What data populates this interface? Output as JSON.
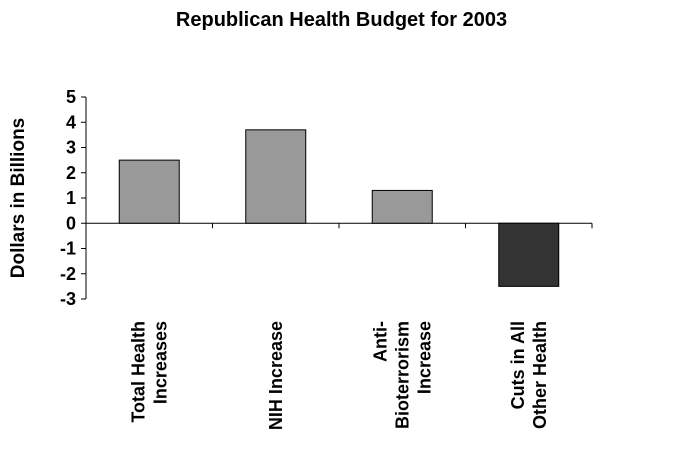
{
  "chart_data": {
    "type": "bar",
    "title": "Republican Health Budget for 2003",
    "xlabel": "",
    "ylabel": "Dollars in Billions",
    "categories": [
      [
        "Total Health",
        "Increases"
      ],
      [
        "NIH Increase"
      ],
      [
        "Anti-",
        "Bioterrorism",
        "Increase"
      ],
      [
        "Cuts in All",
        "Other Health"
      ]
    ],
    "values": [
      2.5,
      3.7,
      1.3,
      -2.5
    ],
    "colors": [
      "#999999",
      "#999999",
      "#999999",
      "#333333"
    ],
    "ylim": [
      -3,
      5
    ],
    "yticks": [
      "5",
      "4",
      "3",
      "2",
      "1",
      "0",
      "-1",
      "-2",
      "-3"
    ],
    "grid": false,
    "legend": "none"
  }
}
